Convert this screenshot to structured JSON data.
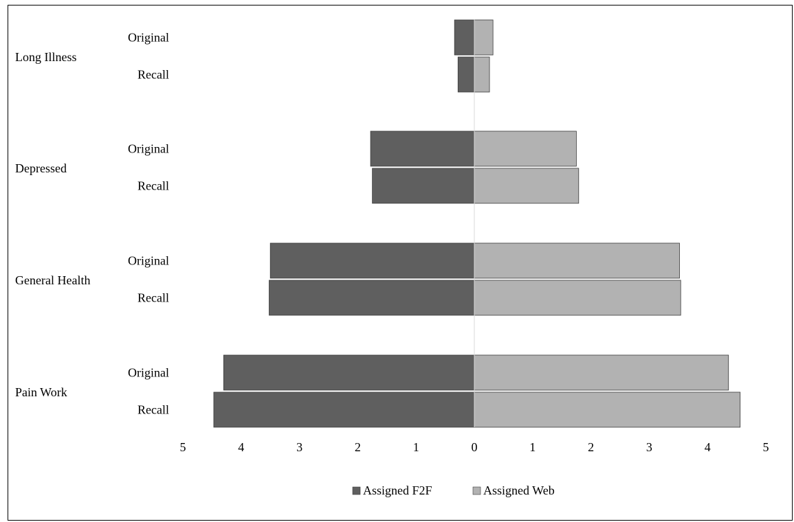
{
  "chart_data": {
    "type": "bar",
    "orientation": "horizontal-diverging",
    "title": "",
    "xlabel": "",
    "ylabel": "",
    "groups": [
      "Long Illness",
      "Depressed",
      "General Health",
      "Pain Work"
    ],
    "subcategories": [
      "Original",
      "Recall"
    ],
    "series": [
      {
        "name": "Assigned F2F",
        "side": "left",
        "color": "#5f5f5f",
        "values": [
          [
            0.34,
            0.28
          ],
          [
            1.78,
            1.75
          ],
          [
            3.5,
            3.52
          ],
          [
            4.3,
            4.47
          ]
        ]
      },
      {
        "name": "Assigned Web",
        "side": "right",
        "color": "#b2b2b2",
        "values": [
          [
            0.32,
            0.26
          ],
          [
            1.75,
            1.79
          ],
          [
            3.52,
            3.54
          ],
          [
            4.36,
            4.56
          ]
        ]
      }
    ],
    "xlim": [
      -5,
      5
    ],
    "xticks": [
      {
        "value": -5,
        "label": "5"
      },
      {
        "value": -4,
        "label": "4"
      },
      {
        "value": -3,
        "label": "3"
      },
      {
        "value": -2,
        "label": "2"
      },
      {
        "value": -1,
        "label": "1"
      },
      {
        "value": 0,
        "label": "0"
      },
      {
        "value": 1,
        "label": "1"
      },
      {
        "value": 2,
        "label": "2"
      },
      {
        "value": 3,
        "label": "3"
      },
      {
        "value": 4,
        "label": "4"
      },
      {
        "value": 5,
        "label": "5"
      }
    ],
    "grid": false,
    "legend": "bottom-center"
  }
}
